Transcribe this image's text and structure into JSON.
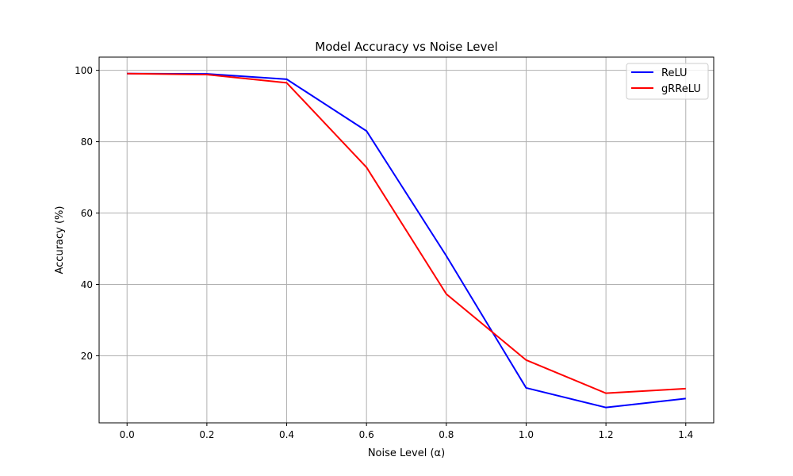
{
  "chart_data": {
    "type": "line",
    "title": "Model Accuracy vs Noise Level",
    "xlabel": "Noise Level (α)",
    "ylabel": "Accuracy (%)",
    "x": [
      0.0,
      0.2,
      0.4,
      0.6,
      0.8,
      1.0,
      1.2,
      1.4
    ],
    "series": [
      {
        "name": "ReLU",
        "color": "#0000ff",
        "values": [
          99.1,
          99.0,
          97.5,
          83.0,
          48.0,
          11.0,
          5.5,
          8.0
        ]
      },
      {
        "name": "gRReLU",
        "color": "#ff0000",
        "values": [
          99.1,
          98.8,
          96.5,
          72.8,
          37.3,
          18.8,
          9.5,
          10.8
        ]
      }
    ],
    "xlim": [
      -0.07,
      1.47
    ],
    "ylim": [
      1.2,
      103.7
    ],
    "xticks": [
      0.0,
      0.2,
      0.4,
      0.6,
      0.8,
      1.0,
      1.2,
      1.4
    ],
    "xtick_labels": [
      "0.0",
      "0.2",
      "0.4",
      "0.6",
      "0.8",
      "1.0",
      "1.2",
      "1.4"
    ],
    "yticks": [
      20,
      40,
      60,
      80,
      100
    ],
    "ytick_labels": [
      "20",
      "40",
      "60",
      "80",
      "100"
    ],
    "grid": true,
    "legend_position": "top-right"
  }
}
